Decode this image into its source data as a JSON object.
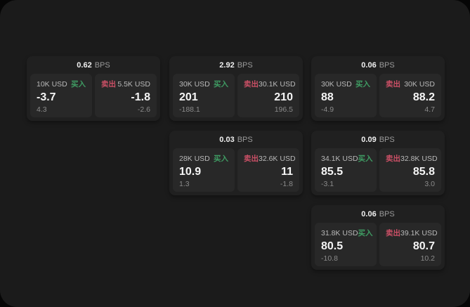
{
  "labels": {
    "bps_suffix": "BPS",
    "buy": "买入",
    "sell": "卖出"
  },
  "colors": {
    "buy": "#3f9c63",
    "sell": "#cb5066",
    "page_bg": "#1b1b1b",
    "card_bg": "#202020",
    "panel_bg": "#282828"
  },
  "cards": [
    {
      "bps": "0.62",
      "row": 1,
      "col": 1,
      "buy": {
        "size": "10K USD",
        "value": "-3.7",
        "delta": "4.3"
      },
      "sell": {
        "size": "5.5K USD",
        "value": "-1.8",
        "delta": "-2.6"
      }
    },
    {
      "bps": "2.92",
      "row": 1,
      "col": 2,
      "buy": {
        "size": "30K USD",
        "value": "201",
        "delta": "-188.1"
      },
      "sell": {
        "size": "30.1K USD",
        "value": "210",
        "delta": "196.5"
      }
    },
    {
      "bps": "0.06",
      "row": 1,
      "col": 3,
      "buy": {
        "size": "30K USD",
        "value": "88",
        "delta": "-4.9"
      },
      "sell": {
        "size": "30K USD",
        "value": "88.2",
        "delta": "4.7"
      }
    },
    {
      "bps": "0.03",
      "row": 2,
      "col": 2,
      "buy": {
        "size": "28K USD",
        "value": "10.9",
        "delta": "1.3"
      },
      "sell": {
        "size": "32.6K USD",
        "value": "11",
        "delta": "-1.8"
      }
    },
    {
      "bps": "0.09",
      "row": 2,
      "col": 3,
      "buy": {
        "size": "34.1K USD",
        "value": "85.5",
        "delta": "-3.1"
      },
      "sell": {
        "size": "32.8K USD",
        "value": "85.8",
        "delta": "3.0"
      }
    },
    {
      "bps": "0.06",
      "row": 3,
      "col": 3,
      "buy": {
        "size": "31.8K USD",
        "value": "80.5",
        "delta": "-10.8"
      },
      "sell": {
        "size": "39.1K USD",
        "value": "80.7",
        "delta": "10.2"
      }
    }
  ]
}
